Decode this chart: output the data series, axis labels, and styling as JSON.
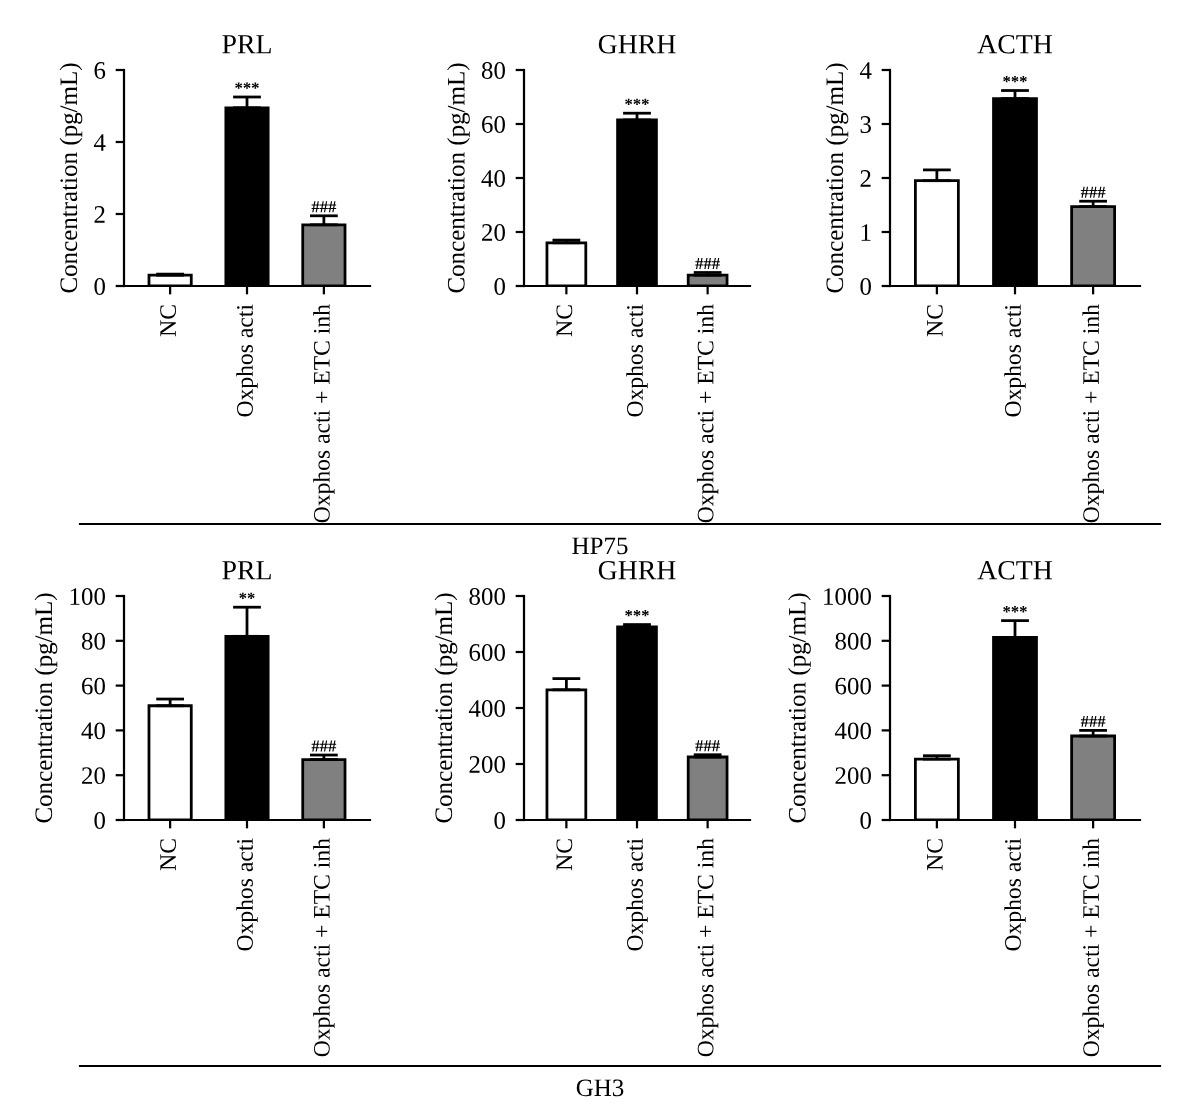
{
  "chart_data": [
    {
      "type": "bar",
      "title": "PRL",
      "ylabel": "Concentration (pg/mL)",
      "categories": [
        "NC",
        "Oxphos acti",
        "Oxphos acti + ETC inh"
      ],
      "values": [
        0.3,
        4.95,
        1.7
      ],
      "errors": [
        0.03,
        0.3,
        0.25
      ],
      "colors": [
        "#ffffff",
        "#000000",
        "#808080"
      ],
      "ylim": [
        0,
        6
      ],
      "yticks": [
        0,
        2,
        4,
        6
      ],
      "annotations": [
        {
          "text": "***",
          "x": "Oxphos acti",
          "y": 5.25
        },
        {
          "text": "###",
          "x": "Oxphos acti + ETC inh",
          "y": 1.95
        }
      ]
    },
    {
      "type": "bar",
      "title": "GHRH",
      "ylabel": "Concentration (pg/mL)",
      "categories": [
        "NC",
        "Oxphos acti",
        "Oxphos acti + ETC inh"
      ],
      "values": [
        16,
        61.5,
        4
      ],
      "errors": [
        1,
        2.5,
        1
      ],
      "colors": [
        "#ffffff",
        "#000000",
        "#808080"
      ],
      "ylim": [
        0,
        80
      ],
      "yticks": [
        0,
        20,
        40,
        60,
        80
      ],
      "annotations": [
        {
          "text": "***",
          "x": "Oxphos acti",
          "y": 64
        },
        {
          "text": "###",
          "x": "Oxphos acti + ETC inh",
          "y": 5
        },
        "HP75"
      ]
    },
    {
      "type": "bar",
      "title": "ACTH",
      "ylabel": "Concentration (pg/mL)",
      "categories": [
        "NC",
        "Oxphos acti",
        "Oxphos acti + ETC inh"
      ],
      "values": [
        1.95,
        3.47,
        1.47
      ],
      "errors": [
        0.2,
        0.15,
        0.1
      ],
      "colors": [
        "#ffffff",
        "#000000",
        "#808080"
      ],
      "ylim": [
        0,
        4
      ],
      "yticks": [
        0,
        1,
        2,
        3,
        4
      ],
      "annotations": [
        {
          "text": "***",
          "x": "Oxphos acti",
          "y": 3.62
        },
        {
          "text": "###",
          "x": "Oxphos acti + ETC inh",
          "y": 1.57
        }
      ]
    },
    {
      "type": "bar",
      "title": "PRL",
      "ylabel": "Concentration (pg/mL)",
      "categories": [
        "NC",
        "Oxphos acti",
        "Oxphos acti + ETC inh"
      ],
      "values": [
        51,
        82,
        27
      ],
      "errors": [
        3,
        13,
        2
      ],
      "colors": [
        "#ffffff",
        "#000000",
        "#808080"
      ],
      "ylim": [
        0,
        100
      ],
      "yticks": [
        0,
        20,
        40,
        60,
        80,
        100
      ],
      "annotations": [
        {
          "text": "**",
          "x": "Oxphos acti",
          "y": 95
        },
        {
          "text": "###",
          "x": "Oxphos acti + ETC inh",
          "y": 29
        }
      ]
    },
    {
      "type": "bar",
      "title": "GHRH",
      "ylabel": "Concentration (pg/mL)",
      "categories": [
        "NC",
        "Oxphos acti",
        "Oxphos acti + ETC inh"
      ],
      "values": [
        465,
        690,
        225
      ],
      "errors": [
        40,
        8,
        8
      ],
      "colors": [
        "#ffffff",
        "#000000",
        "#808080"
      ],
      "ylim": [
        0,
        800
      ],
      "yticks": [
        0,
        200,
        400,
        600,
        800
      ],
      "annotations": [
        {
          "text": "***",
          "x": "Oxphos acti",
          "y": 698
        },
        {
          "text": "###",
          "x": "Oxphos acti + ETC inh",
          "y": 233
        },
        "GH3"
      ]
    },
    {
      "type": "bar",
      "title": "ACTH",
      "ylabel": "Concentration (pg/mL)",
      "categories": [
        "NC",
        "Oxphos acti",
        "Oxphos acti + ETC inh"
      ],
      "values": [
        272,
        815,
        375
      ],
      "errors": [
        15,
        75,
        25
      ],
      "colors": [
        "#ffffff",
        "#000000",
        "#808080"
      ],
      "ylim": [
        0,
        1000
      ],
      "yticks": [
        0,
        200,
        400,
        600,
        800,
        1000
      ],
      "annotations": [
        {
          "text": "***",
          "x": "Oxphos acti",
          "y": 890
        },
        {
          "text": "###",
          "x": "Oxphos acti + ETC inh",
          "y": 400
        }
      ]
    }
  ]
}
